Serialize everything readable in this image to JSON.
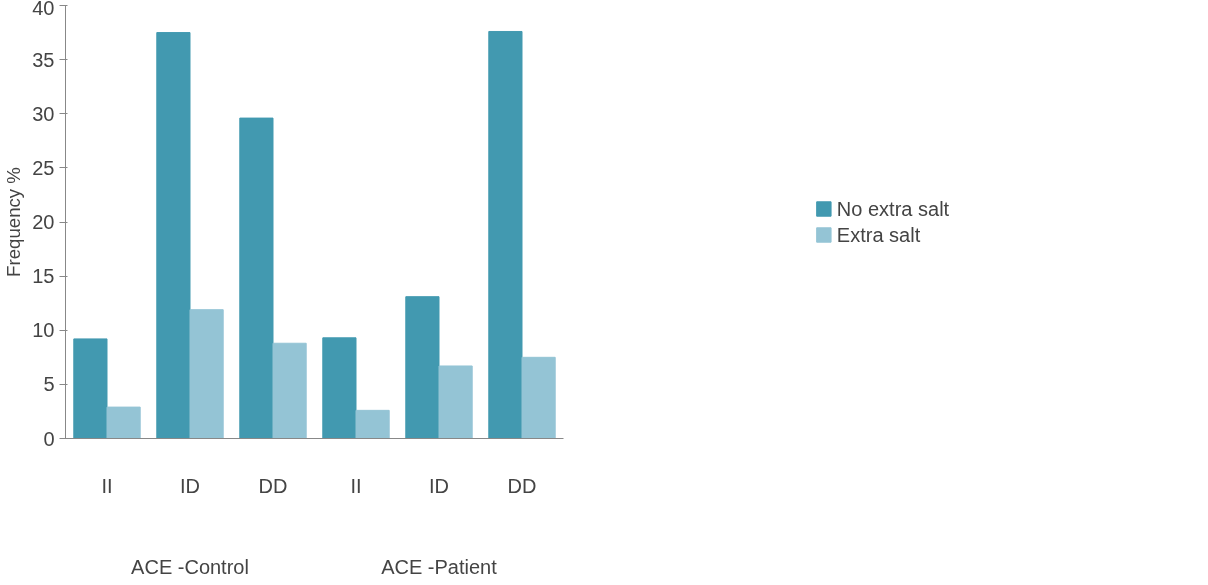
{
  "chart_data": {
    "type": "bar",
    "ylabel": "Frequency %",
    "categories": [
      "II",
      "ID",
      "DD",
      "II",
      "ID",
      "DD"
    ],
    "annotations": [
      "ACE -Control",
      "ACE -Patient"
    ],
    "series": [
      {
        "name": "No extra salt",
        "color": "#4299b0",
        "values": [
          9.2,
          37.5,
          29.6,
          9.3,
          13.1,
          37.6
        ]
      },
      {
        "name": "Extra salt",
        "color": "#94c4d5",
        "values": [
          2.9,
          11.9,
          8.8,
          2.6,
          6.7,
          7.5
        ]
      }
    ],
    "ylim": [
      0,
      40
    ],
    "yticks": [
      0,
      5,
      10,
      15,
      20,
      25,
      30,
      35,
      40
    ],
    "grid": false,
    "legend": "right"
  }
}
